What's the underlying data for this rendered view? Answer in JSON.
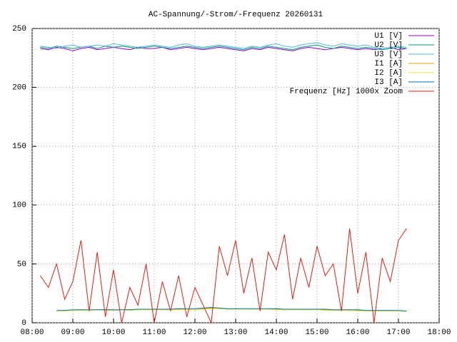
{
  "chart_data": {
    "type": "line",
    "title": "AC-Spannung/-Strom/-Frequenz 20260131",
    "x": [
      8.2,
      8.4,
      8.6,
      8.8,
      9.0,
      9.2,
      9.4,
      9.6,
      9.8,
      10.0,
      10.2,
      10.4,
      10.6,
      10.8,
      11.0,
      11.2,
      11.4,
      11.6,
      11.8,
      12.0,
      12.2,
      12.4,
      12.6,
      12.8,
      13.0,
      13.2,
      13.4,
      13.6,
      13.8,
      14.0,
      14.2,
      14.4,
      14.6,
      14.8,
      15.0,
      15.2,
      15.4,
      15.6,
      15.8,
      16.0,
      16.2,
      16.4,
      16.6,
      16.8,
      17.0,
      17.2
    ],
    "xlim": [
      8,
      18
    ],
    "xticks": [
      {
        "value": 8,
        "label": "08:00"
      },
      {
        "value": 9,
        "label": "09:00"
      },
      {
        "value": 10,
        "label": "10:00"
      },
      {
        "value": 11,
        "label": "11:00"
      },
      {
        "value": 12,
        "label": "12:00"
      },
      {
        "value": 13,
        "label": "13:00"
      },
      {
        "value": 14,
        "label": "14:00"
      },
      {
        "value": 15,
        "label": "15:00"
      },
      {
        "value": 16,
        "label": "16:00"
      },
      {
        "value": 17,
        "label": "17:00"
      },
      {
        "value": 18,
        "label": "18:00"
      }
    ],
    "ylim": [
      0,
      250
    ],
    "yticks": [
      0,
      50,
      100,
      150,
      200,
      250
    ],
    "grid": true,
    "legend": "top-right",
    "series": [
      {
        "name": "U1 [V]",
        "color": "#9400d3",
        "values": [
          233,
          232,
          234,
          233,
          231,
          233,
          234,
          232,
          233,
          234,
          233,
          232,
          234,
          233,
          233,
          234,
          232,
          233,
          234,
          233,
          232,
          233,
          234,
          233,
          232,
          231,
          233,
          232,
          234,
          233,
          232,
          231,
          233,
          234,
          233,
          232,
          233,
          234,
          233,
          232,
          233,
          232,
          233,
          234,
          232,
          233
        ]
      },
      {
        "name": "U2 [V]",
        "color": "#009e73",
        "values": [
          234,
          233,
          235,
          234,
          233,
          234,
          235,
          233,
          235,
          234,
          235,
          234,
          233,
          234,
          235,
          234,
          233,
          234,
          235,
          234,
          233,
          234,
          235,
          234,
          233,
          232,
          234,
          233,
          235,
          234,
          233,
          232,
          234,
          235,
          236,
          234,
          233,
          235,
          234,
          233,
          234,
          233,
          232,
          233,
          234,
          233
        ]
      },
      {
        "name": "U3 [V]",
        "color": "#56b4e9",
        "values": [
          235,
          234,
          233,
          235,
          236,
          234,
          235,
          236,
          235,
          237,
          236,
          235,
          234,
          235,
          236,
          235,
          234,
          236,
          237,
          235,
          234,
          235,
          236,
          235,
          234,
          233,
          235,
          234,
          236,
          237,
          235,
          234,
          236,
          237,
          238,
          236,
          235,
          237,
          236,
          235,
          236,
          234,
          233,
          234,
          235,
          234
        ]
      },
      {
        "name": "I1 [A]",
        "color": "#e69f00",
        "values": [
          null,
          null,
          10,
          10.5,
          10.5,
          11,
          10.5,
          11,
          11,
          10.5,
          11,
          11,
          11,
          11,
          11.5,
          11,
          11,
          11.5,
          11.5,
          11,
          12,
          12.5,
          12,
          12,
          11.5,
          12,
          11.5,
          12,
          11.5,
          11.5,
          11,
          11.5,
          11,
          11,
          11.5,
          11,
          10.5,
          11,
          10.5,
          10.5,
          10,
          10,
          10.5,
          10,
          10,
          10
        ]
      },
      {
        "name": "I2 [A]",
        "color": "#f0e442",
        "values": [
          null,
          null,
          10,
          10,
          10.5,
          10.5,
          10.5,
          11,
          10.5,
          10.5,
          11,
          10.5,
          11,
          11,
          11,
          11,
          11,
          11,
          11.5,
          11,
          11.5,
          12,
          12,
          11.5,
          11.5,
          11.5,
          11.5,
          11.5,
          11.5,
          11,
          11,
          11,
          11,
          11,
          11,
          10.5,
          10.5,
          10.5,
          10.5,
          10,
          10,
          10,
          10,
          10,
          10,
          9.5
        ]
      },
      {
        "name": "I3 [A]",
        "color": "#0072b2",
        "values": [
          null,
          null,
          10.5,
          10.5,
          11,
          11,
          11,
          11,
          11,
          11,
          11,
          11,
          11.5,
          11.5,
          11.5,
          11.5,
          11.5,
          12,
          12,
          12,
          12.5,
          13,
          12.5,
          12,
          12,
          12,
          12,
          12,
          12,
          12,
          11.5,
          11.5,
          11.5,
          11.5,
          11.5,
          11.5,
          11,
          11,
          11,
          11,
          10.5,
          10.5,
          10.5,
          10.5,
          10.5,
          10
        ]
      },
      {
        "name": "Frequenz [Hz] 1000x Zoom",
        "color": "#e51e10",
        "values": [
          40,
          30,
          50,
          20,
          35,
          70,
          10,
          60,
          5,
          45,
          0,
          30,
          15,
          50,
          0,
          35,
          10,
          40,
          5,
          30,
          15,
          0,
          65,
          40,
          70,
          25,
          55,
          10,
          60,
          45,
          75,
          20,
          55,
          30,
          65,
          40,
          50,
          10,
          80,
          25,
          60,
          0,
          55,
          35,
          70,
          80
        ]
      }
    ]
  }
}
